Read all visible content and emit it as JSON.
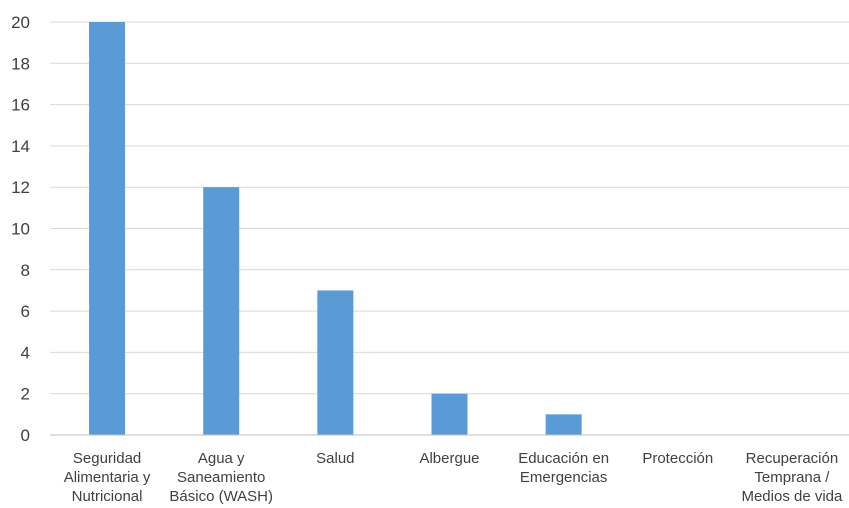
{
  "chart_data": {
    "type": "bar",
    "title": "",
    "xlabel": "",
    "ylabel": "",
    "categories": [
      [
        "Seguridad",
        "Alimentaria y",
        "Nutricional"
      ],
      [
        "Agua y",
        "Saneamiento",
        "Básico (WASH)"
      ],
      [
        "Salud"
      ],
      [
        "Albergue"
      ],
      [
        "Educación en",
        "Emergencias"
      ],
      [
        "Protección"
      ],
      [
        "Recuperación",
        "Temprana /",
        "Medios de vida"
      ]
    ],
    "values": [
      20,
      12,
      7,
      2,
      1,
      0,
      0
    ],
    "ylim": [
      0,
      20
    ],
    "yticks": [
      "0",
      "2",
      "4",
      "6",
      "8",
      "10",
      "12",
      "14",
      "16",
      "18",
      "20"
    ],
    "grid": true,
    "legend": "none",
    "bar_color": "#5b9bd5"
  }
}
